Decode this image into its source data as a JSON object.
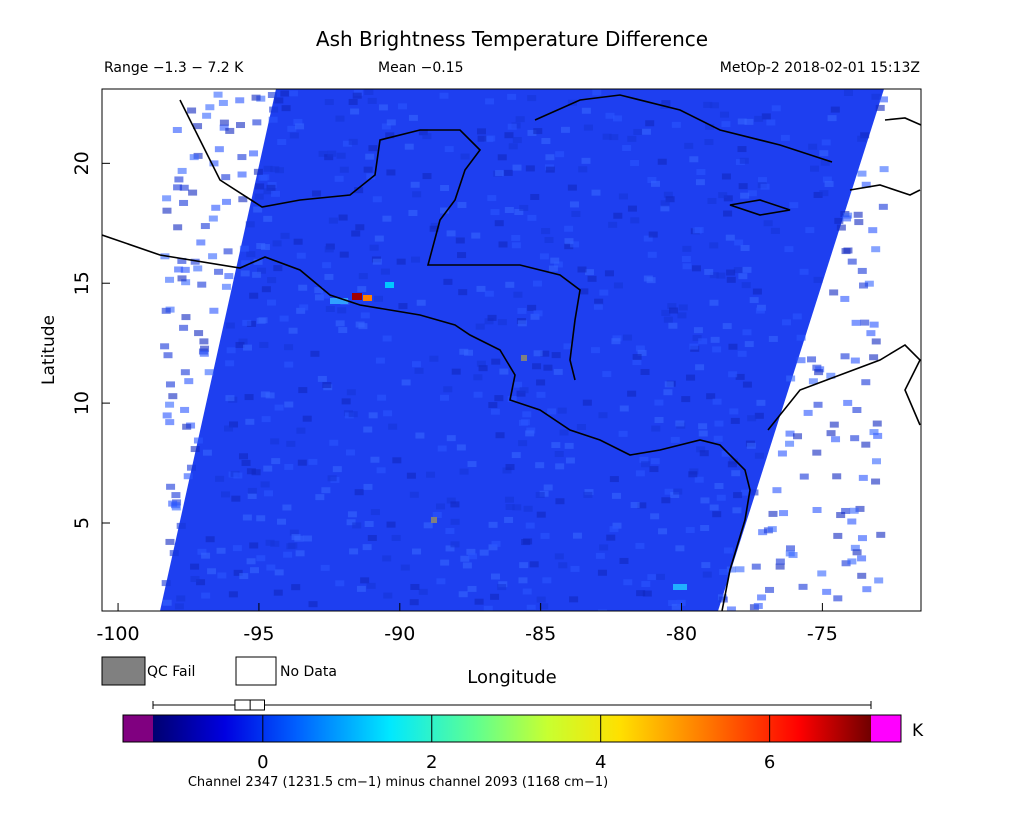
{
  "chart_data": {
    "type": "map",
    "title": "Ash Brightness Temperature Difference",
    "range_text": "Range −1.3 − 7.2 K",
    "mean_text": "Mean −0.15",
    "source_text": "MetOp-2 2018-02-01 15:13Z",
    "x_label": "Longitude",
    "y_label": "Latitude",
    "xlim": [
      -100.57,
      -71.5
    ],
    "xticks": [
      -100,
      -95,
      -90,
      -85,
      -80,
      -75
    ],
    "ylim": [
      1.33,
      23.1
    ],
    "yticks": [
      5,
      10,
      15,
      20
    ],
    "legend": [
      "QC Fail",
      "No Data"
    ],
    "colorbar": {
      "lim": [
        -1.3,
        7.2
      ],
      "ticks": [
        0,
        2,
        4,
        6
      ],
      "unit": "K",
      "boxplot": {
        "min": -1.3,
        "q1": -0.33,
        "median": -0.15,
        "q3": 0.02,
        "max": 7.2
      }
    },
    "caption": "Channel 2347 (1231.5 cm−1) minus channel 2093 (1168 cm−1)"
  }
}
